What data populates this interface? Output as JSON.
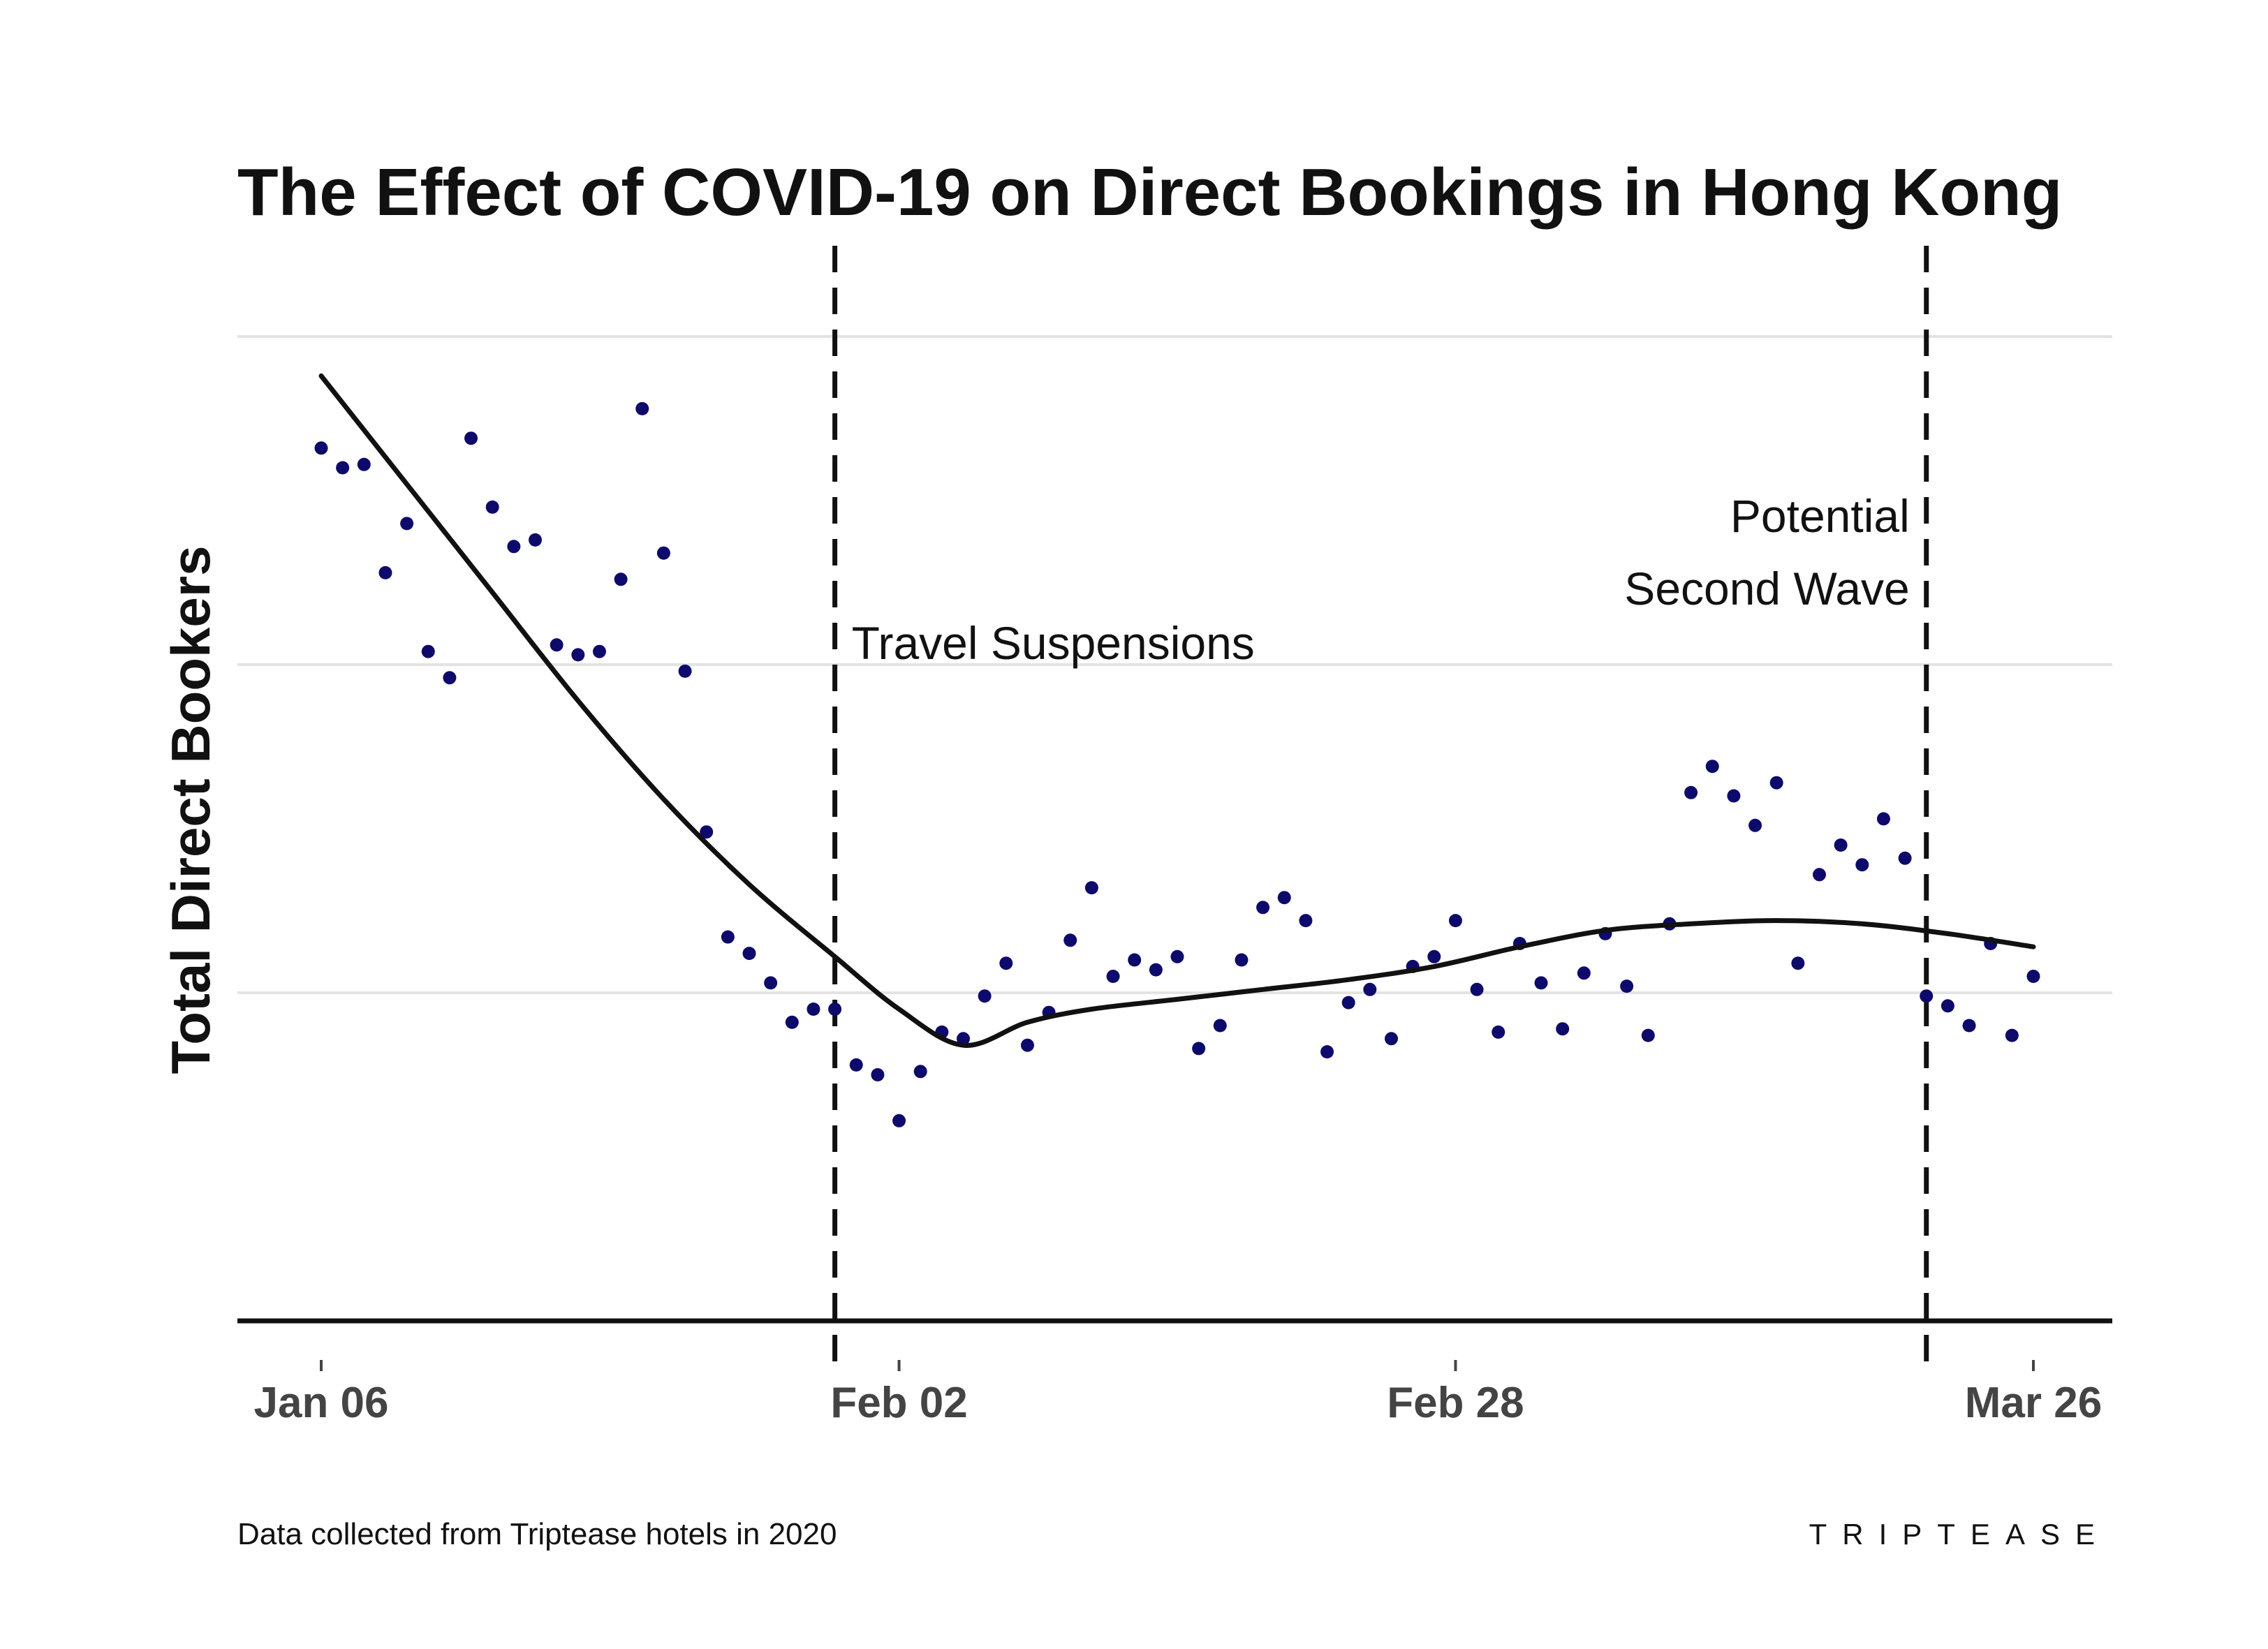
{
  "chart_data": {
    "type": "scatter",
    "title": "The Effect of COVID-19 on Direct Bookings in Hong Kong",
    "ylabel": "Total Direct Bookers",
    "xlabel": "",
    "x_ticks": [
      {
        "day": 0,
        "label": "Jan 06"
      },
      {
        "day": 27,
        "label": "Feb 02"
      },
      {
        "day": 53,
        "label": "Feb 28"
      },
      {
        "day": 80,
        "label": "Mar 26"
      }
    ],
    "xlim": [
      -4,
      84
    ],
    "ylim": [
      0,
      3
    ],
    "y_gridlines": [
      1,
      2,
      3
    ],
    "y_tick_labels": "none",
    "point_color": "#0d0a6b",
    "trend_color": "#111111",
    "annotations": [
      {
        "day": 24,
        "lines": [
          "Travel Suspensions"
        ],
        "label_side": "right"
      },
      {
        "day": 75,
        "lines": [
          "Potential",
          "Second Wave"
        ],
        "label_side": "left"
      }
    ],
    "points": [
      {
        "day": 0,
        "value": 2.66
      },
      {
        "day": 1,
        "value": 2.6
      },
      {
        "day": 2,
        "value": 2.61
      },
      {
        "day": 3,
        "value": 2.28
      },
      {
        "day": 4,
        "value": 2.43
      },
      {
        "day": 5,
        "value": 2.04
      },
      {
        "day": 6,
        "value": 1.96
      },
      {
        "day": 7,
        "value": 2.69
      },
      {
        "day": 8,
        "value": 2.48
      },
      {
        "day": 9,
        "value": 2.36
      },
      {
        "day": 10,
        "value": 2.38
      },
      {
        "day": 11,
        "value": 2.06
      },
      {
        "day": 12,
        "value": 2.03
      },
      {
        "day": 13,
        "value": 2.04
      },
      {
        "day": 14,
        "value": 2.26
      },
      {
        "day": 15,
        "value": 2.78
      },
      {
        "day": 16,
        "value": 2.34
      },
      {
        "day": 17,
        "value": 1.98
      },
      {
        "day": 18,
        "value": 1.49
      },
      {
        "day": 19,
        "value": 1.17
      },
      {
        "day": 20,
        "value": 1.12
      },
      {
        "day": 21,
        "value": 1.03
      },
      {
        "day": 22,
        "value": 0.91
      },
      {
        "day": 23,
        "value": 0.95
      },
      {
        "day": 24,
        "value": 0.95
      },
      {
        "day": 25,
        "value": 0.78
      },
      {
        "day": 26,
        "value": 0.75
      },
      {
        "day": 27,
        "value": 0.61
      },
      {
        "day": 28,
        "value": 0.76
      },
      {
        "day": 29,
        "value": 0.88
      },
      {
        "day": 30,
        "value": 0.86
      },
      {
        "day": 31,
        "value": 0.99
      },
      {
        "day": 32,
        "value": 1.09
      },
      {
        "day": 33,
        "value": 0.84
      },
      {
        "day": 34,
        "value": 0.94
      },
      {
        "day": 35,
        "value": 1.16
      },
      {
        "day": 36,
        "value": 1.32
      },
      {
        "day": 37,
        "value": 1.05
      },
      {
        "day": 38,
        "value": 1.1
      },
      {
        "day": 39,
        "value": 1.07
      },
      {
        "day": 40,
        "value": 1.11
      },
      {
        "day": 41,
        "value": 0.83
      },
      {
        "day": 42,
        "value": 0.9
      },
      {
        "day": 43,
        "value": 1.1
      },
      {
        "day": 44,
        "value": 1.26
      },
      {
        "day": 45,
        "value": 1.29
      },
      {
        "day": 46,
        "value": 1.22
      },
      {
        "day": 47,
        "value": 0.82
      },
      {
        "day": 48,
        "value": 0.97
      },
      {
        "day": 49,
        "value": 1.01
      },
      {
        "day": 50,
        "value": 0.86
      },
      {
        "day": 51,
        "value": 1.08
      },
      {
        "day": 52,
        "value": 1.11
      },
      {
        "day": 53,
        "value": 1.22
      },
      {
        "day": 54,
        "value": 1.01
      },
      {
        "day": 55,
        "value": 0.88
      },
      {
        "day": 56,
        "value": 1.15
      },
      {
        "day": 57,
        "value": 1.03
      },
      {
        "day": 58,
        "value": 0.89
      },
      {
        "day": 59,
        "value": 1.06
      },
      {
        "day": 60,
        "value": 1.18
      },
      {
        "day": 61,
        "value": 1.02
      },
      {
        "day": 62,
        "value": 0.87
      },
      {
        "day": 63,
        "value": 1.21
      },
      {
        "day": 64,
        "value": 1.61
      },
      {
        "day": 65,
        "value": 1.69
      },
      {
        "day": 66,
        "value": 1.6
      },
      {
        "day": 67,
        "value": 1.51
      },
      {
        "day": 68,
        "value": 1.64
      },
      {
        "day": 69,
        "value": 1.09
      },
      {
        "day": 70,
        "value": 1.36
      },
      {
        "day": 71,
        "value": 1.45
      },
      {
        "day": 72,
        "value": 1.39
      },
      {
        "day": 73,
        "value": 1.53
      },
      {
        "day": 74,
        "value": 1.41
      },
      {
        "day": 75,
        "value": 0.99
      },
      {
        "day": 76,
        "value": 0.96
      },
      {
        "day": 77,
        "value": 0.9
      },
      {
        "day": 78,
        "value": 1.15
      },
      {
        "day": 79,
        "value": 0.87
      },
      {
        "day": 80,
        "value": 1.05
      }
    ],
    "trend": [
      {
        "day": 0,
        "value": 2.88
      },
      {
        "day": 4,
        "value": 2.55
      },
      {
        "day": 8,
        "value": 2.22
      },
      {
        "day": 12,
        "value": 1.89
      },
      {
        "day": 16,
        "value": 1.59
      },
      {
        "day": 20,
        "value": 1.33
      },
      {
        "day": 24,
        "value": 1.11
      },
      {
        "day": 27,
        "value": 0.95
      },
      {
        "day": 30,
        "value": 0.84
      },
      {
        "day": 33,
        "value": 0.91
      },
      {
        "day": 36,
        "value": 0.95
      },
      {
        "day": 40,
        "value": 0.98
      },
      {
        "day": 44,
        "value": 1.01
      },
      {
        "day": 48,
        "value": 1.04
      },
      {
        "day": 52,
        "value": 1.08
      },
      {
        "day": 56,
        "value": 1.14
      },
      {
        "day": 60,
        "value": 1.19
      },
      {
        "day": 64,
        "value": 1.21
      },
      {
        "day": 68,
        "value": 1.22
      },
      {
        "day": 72,
        "value": 1.21
      },
      {
        "day": 76,
        "value": 1.18
      },
      {
        "day": 80,
        "value": 1.14
      }
    ]
  },
  "footer": {
    "source_note": "Data collected from Triptease hotels in 2020",
    "brand": "TRIPTEASE"
  }
}
